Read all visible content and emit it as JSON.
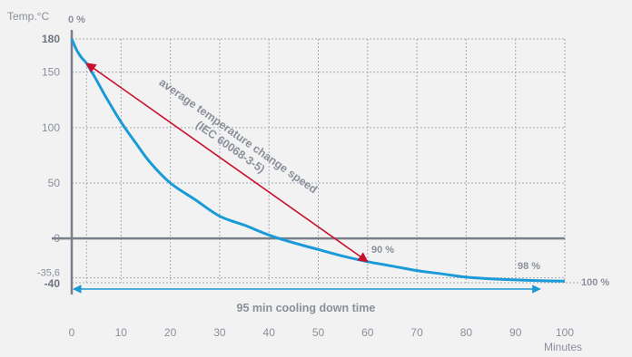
{
  "chart_data": {
    "type": "line",
    "xlabel": "Minutes",
    "ylabel": "Temp.°C",
    "xlim": [
      0,
      100
    ],
    "ylim": [
      -40,
      180
    ],
    "x_ticks": [
      0,
      10,
      20,
      30,
      40,
      50,
      60,
      70,
      80,
      90,
      100
    ],
    "y_ticks": [
      {
        "value": 180,
        "label": "180",
        "bold": true
      },
      {
        "value": 150,
        "label": "150",
        "bold": false
      },
      {
        "value": 100,
        "label": "100",
        "bold": false
      },
      {
        "value": 50,
        "label": "50",
        "bold": false
      },
      {
        "value": 0,
        "label": "0",
        "bold": false
      },
      {
        "value": -35.6,
        "label": "-35,6",
        "bold": false
      },
      {
        "value": -40,
        "label": "-40",
        "bold": true
      }
    ],
    "grid": true,
    "series": [
      {
        "color": "#1a9ad6",
        "x": [
          0,
          1,
          2,
          3,
          5,
          7,
          10,
          13,
          16,
          20,
          25,
          30,
          35,
          40,
          45,
          50,
          55,
          60,
          65,
          70,
          75,
          80,
          85,
          90,
          95,
          100
        ],
        "y": [
          180,
          170,
          163,
          158,
          143,
          127,
          105,
          86,
          68,
          50,
          35,
          20,
          12,
          3,
          -4,
          -10,
          -16,
          -21,
          -25,
          -29,
          -32,
          -35,
          -36.5,
          -37.5,
          -38.2,
          -38.5
        ]
      }
    ],
    "annotations": {
      "pct_0": "0 %",
      "pct_90": "90 %",
      "pct_98": "98 %",
      "pct_100": "100 %",
      "arrow_label_line1": "average temperature change speed",
      "arrow_label_line2": "(IEC 60068-3-5)",
      "cooling_label": "95 min cooling down time",
      "arrow_from": [
        3,
        158
      ],
      "arrow_to": [
        60,
        -21
      ],
      "cooling_span": [
        0,
        95
      ]
    },
    "colors": {
      "curve": "#1a9ad6",
      "rate_arrow": "#c8102e",
      "cooling_arrow": "#1a9ad6",
      "axis": "#7a7f8a",
      "text": "#8a8f99"
    }
  }
}
